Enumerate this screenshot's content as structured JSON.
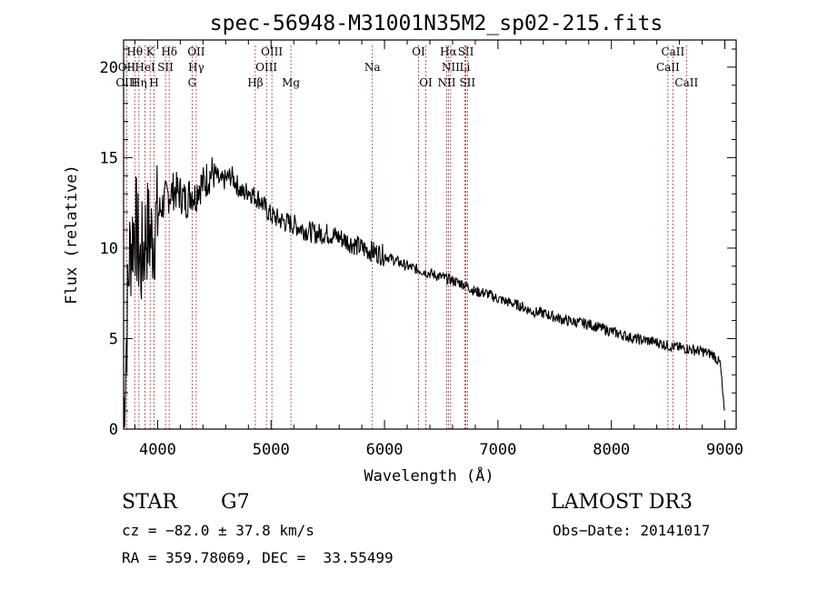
{
  "chart_data": {
    "type": "line",
    "title": "spec-56948-M31001N35M2_sp02-215.fits",
    "xlabel": "Wavelength (Å)",
    "ylabel": "Flux (relative)",
    "xlim": [
      3700,
      9100
    ],
    "ylim": [
      0,
      21.5
    ],
    "x_ticks": [
      4000,
      5000,
      6000,
      7000,
      8000,
      9000
    ],
    "y_ticks": [
      0,
      5,
      10,
      15,
      20
    ],
    "series": [
      {
        "name": "flux",
        "x": [
          3700,
          3750,
          3800,
          3850,
          3900,
          3950,
          4000,
          4050,
          4100,
          4150,
          4200,
          4250,
          4300,
          4330,
          4360,
          4400,
          4450,
          4500,
          4550,
          4600,
          4650,
          4700,
          4750,
          4800,
          4850,
          4900,
          4950,
          5000,
          5100,
          5200,
          5300,
          5400,
          5500,
          5600,
          5700,
          5800,
          5900,
          6000,
          6100,
          6200,
          6300,
          6400,
          6500,
          6560,
          6600,
          6700,
          6800,
          6900,
          7000,
          7100,
          7200,
          7300,
          7400,
          7500,
          7600,
          7700,
          7800,
          7900,
          8000,
          8100,
          8200,
          8300,
          8400,
          8500,
          8600,
          8700,
          8800,
          8900,
          8960,
          9000
        ],
        "y": [
          0.5,
          9.5,
          11.5,
          9.0,
          11.0,
          10.5,
          11.8,
          12.5,
          13.0,
          13.2,
          13.0,
          12.6,
          13.2,
          12.8,
          13.5,
          13.5,
          14.0,
          14.2,
          13.6,
          13.8,
          14.0,
          13.5,
          13.0,
          13.2,
          12.9,
          12.7,
          12.2,
          11.8,
          11.5,
          11.3,
          11.0,
          10.8,
          10.8,
          10.6,
          10.3,
          10.0,
          9.8,
          9.6,
          9.3,
          9.0,
          8.8,
          8.6,
          8.4,
          8.3,
          8.2,
          8.0,
          7.6,
          7.5,
          7.2,
          7.0,
          6.8,
          6.5,
          6.4,
          6.2,
          6.0,
          5.9,
          5.8,
          5.6,
          5.4,
          5.2,
          5.0,
          4.9,
          4.8,
          4.6,
          4.5,
          4.4,
          4.3,
          4.1,
          3.6,
          0.5
        ]
      }
    ],
    "line_markers": [
      {
        "label": "Hθ",
        "x": 3798,
        "row": 1
      },
      {
        "label": "K",
        "x": 3934,
        "row": 1
      },
      {
        "label": "Hδ",
        "x": 4102,
        "row": 1
      },
      {
        "label": "OII",
        "x": 4340,
        "row": 1
      },
      {
        "label": "OIII",
        "x": 5007,
        "row": 1
      },
      {
        "label": "OI",
        "x": 6300,
        "row": 1
      },
      {
        "label": "Hα",
        "x": 6563,
        "row": 1
      },
      {
        "label": "SII",
        "x": 6717,
        "row": 1
      },
      {
        "label": "CaII",
        "x": 8542,
        "row": 1
      },
      {
        "label": "OII",
        "x": 3727,
        "row": 2
      },
      {
        "label": "HeI",
        "x": 3889,
        "row": 2
      },
      {
        "label": "SII",
        "x": 4069,
        "row": 2
      },
      {
        "label": "Hγ",
        "x": 4340,
        "row": 2
      },
      {
        "label": "OIII",
        "x": 4959,
        "row": 2
      },
      {
        "label": "Na",
        "x": 5893,
        "row": 2
      },
      {
        "label": "NII",
        "x": 6583,
        "row": 2
      },
      {
        "label": "Li",
        "x": 6708,
        "row": 2
      },
      {
        "label": "CaII",
        "x": 8498,
        "row": 2
      },
      {
        "label": "OIII",
        "x": 3727,
        "row": 3
      },
      {
        "label": "Hη",
        "x": 3835,
        "row": 3
      },
      {
        "label": "H",
        "x": 3968,
        "row": 3
      },
      {
        "label": "G",
        "x": 4304,
        "row": 3
      },
      {
        "label": "Hβ",
        "x": 4861,
        "row": 3
      },
      {
        "label": "Mg",
        "x": 5175,
        "row": 3
      },
      {
        "label": "OI",
        "x": 6364,
        "row": 3
      },
      {
        "label": "NII",
        "x": 6548,
        "row": 3
      },
      {
        "label": "SII",
        "x": 6731,
        "row": 3
      },
      {
        "label": "CaII",
        "x": 8662,
        "row": 3
      }
    ]
  },
  "info": {
    "object_class": "STAR",
    "subclass": "G7",
    "survey": "LAMOST DR3",
    "cz": "cz = −82.0 ± 37.8 km/s",
    "obs_date": "Obs−Date: 20141017",
    "coords": "RA = 359.78069, DEC =  33.55499"
  }
}
